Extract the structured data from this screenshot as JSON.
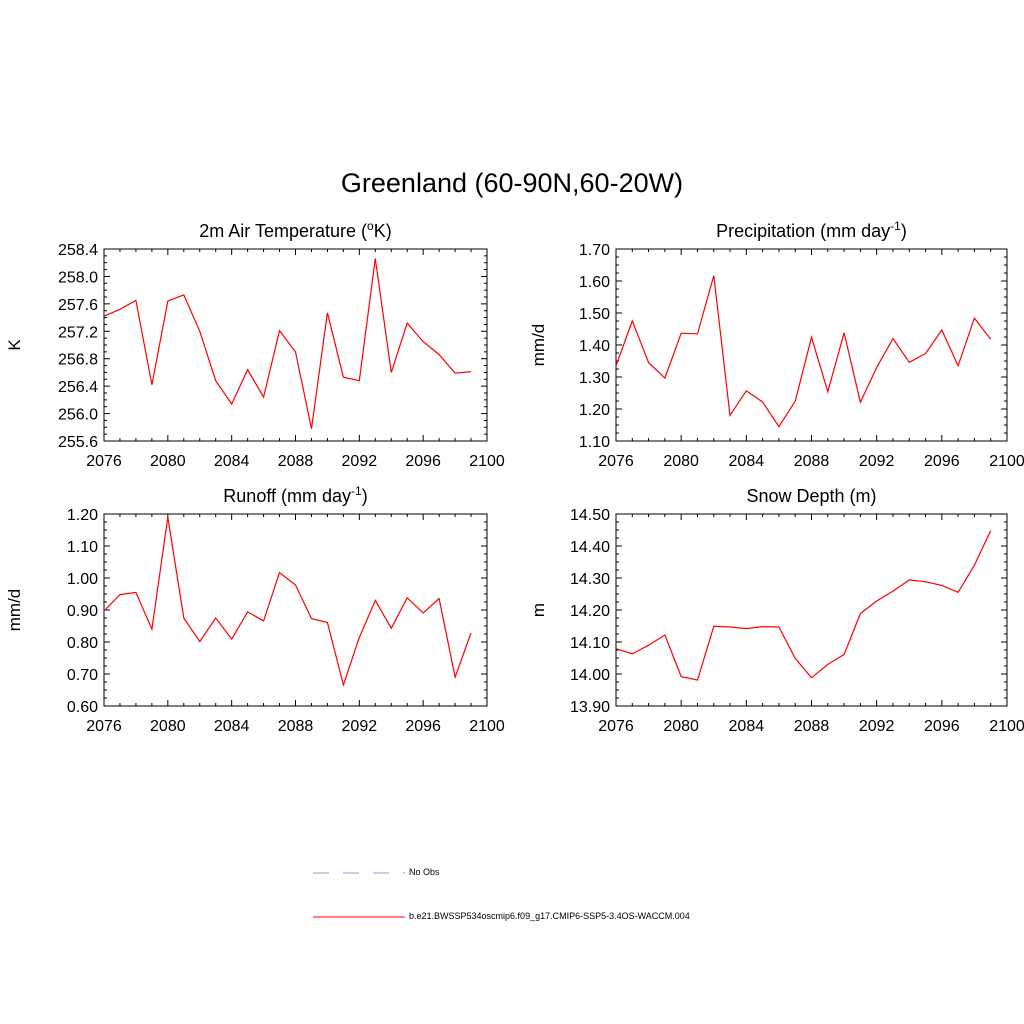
{
  "figure_title": "Greenland (60-90N,60-20W)",
  "legend": {
    "entries": [
      {
        "label": "No Obs",
        "color": "#9999dd",
        "style": "dashed"
      },
      {
        "label": "b.e21.BWSSP534oscmip6.f09_g17.CMIP6-SSP5-3.4OS-WACCM.004",
        "color": "#ff0000",
        "style": "solid"
      }
    ]
  },
  "chart_data": [
    {
      "type": "line",
      "title": "2m Air Temperature (",
      "title_sup": "o",
      "title_suffix": "K)",
      "ylabel": "K",
      "xlim": [
        2076,
        2100
      ],
      "ylim": [
        255.6,
        258.4
      ],
      "xticks": [
        2076,
        2080,
        2084,
        2088,
        2092,
        2096,
        2100
      ],
      "yticks": [
        "255.6",
        "256.0",
        "256.4",
        "256.8",
        "257.2",
        "257.6",
        "258.0",
        "258.4"
      ],
      "x": [
        2076,
        2077,
        2078,
        2079,
        2080,
        2081,
        2082,
        2083,
        2084,
        2085,
        2086,
        2087,
        2088,
        2089,
        2090,
        2091,
        2092,
        2093,
        2094,
        2095,
        2096,
        2097,
        2098,
        2099
      ],
      "series": [
        {
          "values": [
            257.42,
            257.52,
            257.65,
            256.42,
            257.64,
            257.73,
            257.2,
            256.48,
            256.14,
            256.64,
            256.24,
            257.21,
            256.9,
            255.78,
            257.47,
            256.53,
            256.48,
            258.26,
            256.6,
            257.32,
            257.05,
            256.86,
            256.59,
            256.61
          ],
          "color": "#ff0000"
        }
      ]
    },
    {
      "type": "line",
      "title": "Precipitation (mm day",
      "title_sup": "-1",
      "title_suffix": ")",
      "ylabel": "mm/d",
      "xlim": [
        2076,
        2100
      ],
      "ylim": [
        1.1,
        1.7
      ],
      "xticks": [
        2076,
        2080,
        2084,
        2088,
        2092,
        2096,
        2100
      ],
      "yticks": [
        "1.10",
        "1.20",
        "1.30",
        "1.40",
        "1.50",
        "1.60",
        "1.70"
      ],
      "x": [
        2076,
        2077,
        2078,
        2079,
        2080,
        2081,
        2082,
        2083,
        2084,
        2085,
        2086,
        2087,
        2088,
        2089,
        2090,
        2091,
        2092,
        2093,
        2094,
        2095,
        2096,
        2097,
        2098,
        2099
      ],
      "series": [
        {
          "values": [
            1.335,
            1.475,
            1.345,
            1.297,
            1.437,
            1.435,
            1.617,
            1.18,
            1.257,
            1.222,
            1.145,
            1.224,
            1.424,
            1.254,
            1.438,
            1.221,
            1.33,
            1.42,
            1.346,
            1.373,
            1.447,
            1.335,
            1.484,
            1.418
          ],
          "color": "#ff0000"
        }
      ]
    },
    {
      "type": "line",
      "title": "Runoff (mm day",
      "title_sup": "-1",
      "title_suffix": ")",
      "ylabel": "mm/d",
      "xlim": [
        2076,
        2100
      ],
      "ylim": [
        0.6,
        1.2
      ],
      "xticks": [
        2076,
        2080,
        2084,
        2088,
        2092,
        2096,
        2100
      ],
      "yticks": [
        "0.60",
        "0.70",
        "0.80",
        "0.90",
        "1.00",
        "1.10",
        "1.20"
      ],
      "x": [
        2076,
        2077,
        2078,
        2079,
        2080,
        2081,
        2082,
        2083,
        2084,
        2085,
        2086,
        2087,
        2088,
        2089,
        2090,
        2091,
        2092,
        2093,
        2094,
        2095,
        2096,
        2097,
        2098,
        2099
      ],
      "series": [
        {
          "values": [
            0.897,
            0.948,
            0.955,
            0.84,
            1.19,
            0.875,
            0.801,
            0.875,
            0.809,
            0.894,
            0.866,
            1.017,
            0.978,
            0.873,
            0.861,
            0.666,
            0.814,
            0.93,
            0.843,
            0.938,
            0.891,
            0.936,
            0.69,
            0.828
          ],
          "color": "#ff0000"
        }
      ]
    },
    {
      "type": "line",
      "title": "Snow Depth (m)",
      "title_sup": "",
      "title_suffix": "",
      "ylabel": "m",
      "xlim": [
        2076,
        2100
      ],
      "ylim": [
        13.9,
        14.5
      ],
      "xticks": [
        2076,
        2080,
        2084,
        2088,
        2092,
        2096,
        2100
      ],
      "yticks": [
        "13.90",
        "14.00",
        "14.10",
        "14.20",
        "14.30",
        "14.40",
        "14.50"
      ],
      "x": [
        2076,
        2077,
        2078,
        2079,
        2080,
        2081,
        2082,
        2083,
        2084,
        2085,
        2086,
        2087,
        2088,
        2089,
        2090,
        2091,
        2092,
        2093,
        2094,
        2095,
        2096,
        2097,
        2098,
        2099
      ],
      "series": [
        {
          "values": [
            14.079,
            14.063,
            14.09,
            14.122,
            13.992,
            13.981,
            14.149,
            14.147,
            14.142,
            14.148,
            14.147,
            14.049,
            13.988,
            14.03,
            14.061,
            14.189,
            14.228,
            14.259,
            14.294,
            14.288,
            14.277,
            14.255,
            14.34,
            14.448
          ],
          "color": "#ff0000"
        }
      ]
    }
  ]
}
